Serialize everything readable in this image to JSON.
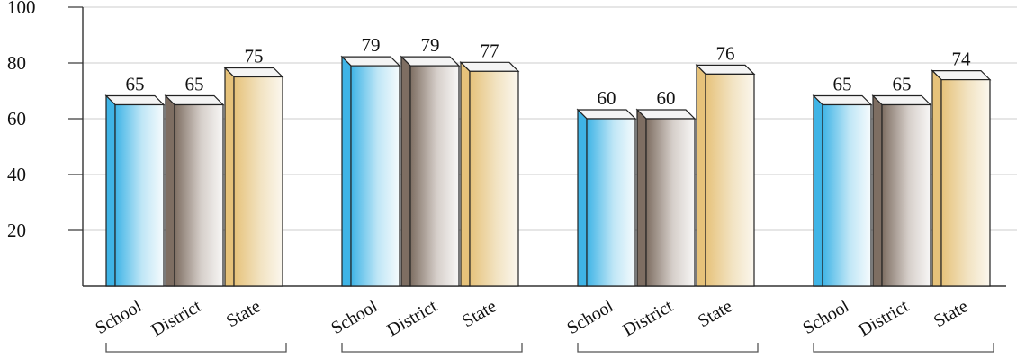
{
  "chart_data": {
    "type": "bar",
    "style": "3d-bars",
    "grid": true,
    "ylim": [
      0,
      100
    ],
    "yticks": [
      20,
      40,
      60,
      80,
      100
    ],
    "series_names": [
      "School",
      "District",
      "State"
    ],
    "groups": [
      {
        "values": [
          65,
          65,
          75
        ]
      },
      {
        "values": [
          79,
          79,
          77
        ]
      },
      {
        "values": [
          60,
          60,
          76
        ]
      },
      {
        "values": [
          65,
          65,
          74
        ]
      }
    ],
    "colors": {
      "School": "#3fb4e6",
      "District": "#7e6e62",
      "State": "#e6c27a"
    }
  }
}
